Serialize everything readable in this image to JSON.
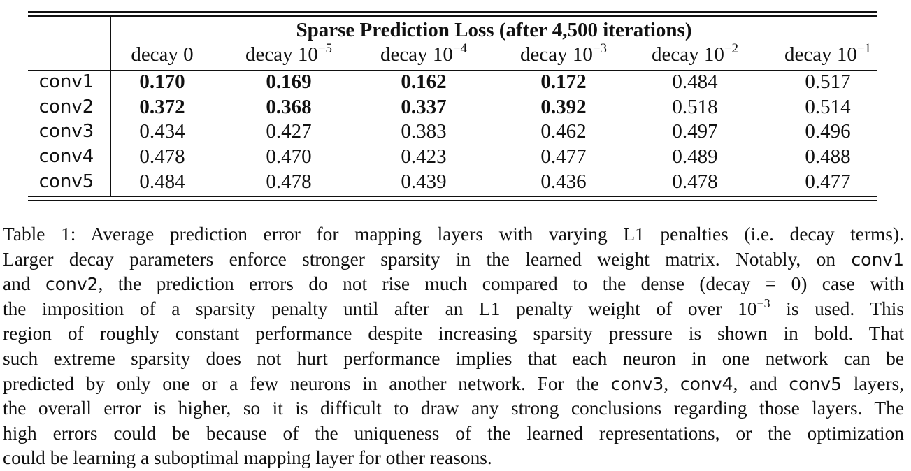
{
  "table": {
    "group_title": "Sparse Prediction Loss (after 4,500 iterations)",
    "columns": [
      {
        "base": "decay 0",
        "exp": ""
      },
      {
        "base": "decay 10",
        "exp": "−5"
      },
      {
        "base": "decay 10",
        "exp": "−4"
      },
      {
        "base": "decay 10",
        "exp": "−3"
      },
      {
        "base": "decay 10",
        "exp": "−2"
      },
      {
        "base": "decay 10",
        "exp": "−1"
      }
    ],
    "rows": [
      {
        "label": "conv1",
        "values": [
          "0.170",
          "0.169",
          "0.162",
          "0.172",
          "0.484",
          "0.517"
        ],
        "bold": [
          true,
          true,
          true,
          true,
          false,
          false
        ]
      },
      {
        "label": "conv2",
        "values": [
          "0.372",
          "0.368",
          "0.337",
          "0.392",
          "0.518",
          "0.514"
        ],
        "bold": [
          true,
          true,
          true,
          true,
          false,
          false
        ]
      },
      {
        "label": "conv3",
        "values": [
          "0.434",
          "0.427",
          "0.383",
          "0.462",
          "0.497",
          "0.496"
        ],
        "bold": [
          false,
          false,
          false,
          false,
          false,
          false
        ]
      },
      {
        "label": "conv4",
        "values": [
          "0.478",
          "0.470",
          "0.423",
          "0.477",
          "0.489",
          "0.488"
        ],
        "bold": [
          false,
          false,
          false,
          false,
          false,
          false
        ]
      },
      {
        "label": "conv5",
        "values": [
          "0.484",
          "0.478",
          "0.439",
          "0.436",
          "0.478",
          "0.477"
        ],
        "bold": [
          false,
          false,
          false,
          false,
          false,
          false
        ]
      }
    ]
  },
  "caption": {
    "lines": [
      [
        {
          "t": "Table 1: Average prediction error for mapping layers with varying L1 penalties (i.e. decay terms)."
        }
      ],
      [
        {
          "t": "Larger decay parameters enforce stronger sparsity in the learned weight matrix. Notably, on "
        },
        {
          "t": "conv1",
          "mono": true
        }
      ],
      [
        {
          "t": "and "
        },
        {
          "t": "conv2",
          "mono": true
        },
        {
          "t": ", the prediction errors do not rise much compared to the dense (decay = 0) case with"
        }
      ],
      [
        {
          "t": "the imposition of a sparsity penalty until after an L1 penalty weight of over 10"
        },
        {
          "t": "−3",
          "sup": true
        },
        {
          "t": " is used.  This"
        }
      ],
      [
        {
          "t": "region of roughly constant performance despite increasing sparsity pressure is shown in bold. That"
        }
      ],
      [
        {
          "t": "such extreme sparsity does not hurt performance implies that each neuron in one network can be"
        }
      ],
      [
        {
          "t": "predicted by only one or a few neurons in another network. For the "
        },
        {
          "t": "conv3",
          "mono": true
        },
        {
          "t": ", "
        },
        {
          "t": "conv4",
          "mono": true
        },
        {
          "t": ", and "
        },
        {
          "t": "conv5",
          "mono": true
        },
        {
          "t": " layers,"
        }
      ],
      [
        {
          "t": "the overall error is higher, so it is difficult to draw any strong conclusions regarding those layers. The"
        }
      ],
      [
        {
          "t": "high errors could be because of the uniqueness of the learned representations, or the optimization"
        }
      ],
      [
        {
          "t": "could be learning a suboptimal mapping layer for other reasons."
        }
      ]
    ]
  }
}
